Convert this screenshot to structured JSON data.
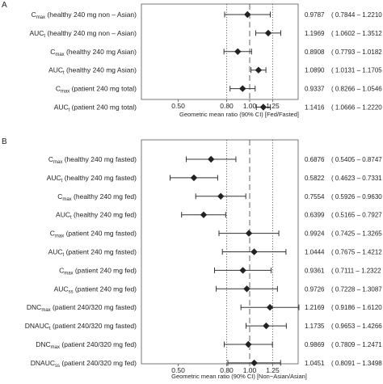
{
  "chart_data": [
    {
      "type": "forest",
      "panel_label": "A",
      "xlabel": "Geometric mean ratio (90% CI) [Fed/Fasted]",
      "xscale": "log",
      "xlim": [
        0.35,
        1.6
      ],
      "xticks": [
        0.5,
        0.8,
        1.0,
        1.25
      ],
      "xtick_labels": [
        "0.50",
        "0.80",
        "1.00",
        "1.25"
      ],
      "reference_lines": {
        "dotted": [
          0.8,
          1.25
        ],
        "dashed": [
          1.0
        ]
      },
      "rows": [
        {
          "sym": "C",
          "sub": "max",
          "rest": " (healthy 240 mg non – Asian)",
          "est": 0.9787,
          "lo": 0.7844,
          "hi": 1.221,
          "est_label": "0.9787",
          "ci_label": "( 0.7844 – 1.2210 )"
        },
        {
          "sym": "AUC",
          "sub": "t",
          "rest": " (healthy 240 mg non – Asian)",
          "est": 1.1969,
          "lo": 1.0602,
          "hi": 1.3512,
          "est_label": "1.1969",
          "ci_label": "( 1.0602 – 1.3512 )"
        },
        {
          "sym": "C",
          "sub": "max",
          "rest": " (healthy 240 mg Asian)",
          "est": 0.8908,
          "lo": 0.7793,
          "hi": 1.0182,
          "est_label": "0.8908",
          "ci_label": "( 0.7793 – 1.0182 )"
        },
        {
          "sym": "AUC",
          "sub": "t",
          "rest": " (healthy 240 mg Asian)",
          "est": 1.089,
          "lo": 1.0131,
          "hi": 1.1705,
          "est_label": "1.0890",
          "ci_label": "( 1.0131 – 1.1705 )"
        },
        {
          "sym": "C",
          "sub": "max",
          "rest": " (patient 240 mg total)",
          "est": 0.9337,
          "lo": 0.8266,
          "hi": 1.0546,
          "est_label": "0.9337",
          "ci_label": "( 0.8266 – 1.0546 )"
        },
        {
          "sym": "AUC",
          "sub": "t",
          "rest": " (patient 240 mg total)",
          "est": 1.1416,
          "lo": 1.0666,
          "hi": 1.222,
          "est_label": "1.1416",
          "ci_label": "( 1.0666 – 1.2220 )"
        }
      ]
    },
    {
      "type": "forest",
      "panel_label": "B",
      "xlabel": "Geometric mean ratio (90% CI) [Non−Asian/Asian]",
      "xscale": "log",
      "xlim": [
        0.35,
        1.6
      ],
      "xticks": [
        0.5,
        0.8,
        1.0,
        1.25
      ],
      "xtick_labels": [
        "0.50",
        "0.80",
        "1.00",
        "1.25"
      ],
      "reference_lines": {
        "dotted": [
          0.8,
          1.25
        ],
        "dashed": [
          1.0
        ]
      },
      "rows": [
        {
          "sym": "C",
          "sub": "max",
          "rest": " (healthy 240 mg fasted)",
          "est": 0.6876,
          "lo": 0.5405,
          "hi": 0.8747,
          "est_label": "0.6876",
          "ci_label": "( 0.5405 – 0.8747 )"
        },
        {
          "sym": "AUC",
          "sub": "t",
          "rest": " (healthy 240 mg fasted)",
          "est": 0.5822,
          "lo": 0.4623,
          "hi": 0.7331,
          "est_label": "0.5822",
          "ci_label": "( 0.4623 – 0.7331 )"
        },
        {
          "sym": "C",
          "sub": "max",
          "rest": " (healthy 240 mg fed)",
          "est": 0.7554,
          "lo": 0.5926,
          "hi": 0.963,
          "est_label": "0.7554",
          "ci_label": "( 0.5926 – 0.9630 )"
        },
        {
          "sym": "AUC",
          "sub": "t",
          "rest": " (healthy 240 mg fed)",
          "est": 0.6399,
          "lo": 0.5165,
          "hi": 0.7927,
          "est_label": "0.6399",
          "ci_label": "( 0.5165 – 0.7927 )"
        },
        {
          "sym": "C",
          "sub": "max",
          "rest": " (patient 240 mg fasted)",
          "est": 0.9924,
          "lo": 0.7425,
          "hi": 1.3265,
          "est_label": "0.9924",
          "ci_label": "( 0.7425 – 1.3265 )"
        },
        {
          "sym": "AUC",
          "sub": "t",
          "rest": " (patient 240 mg fasted)",
          "est": 1.0444,
          "lo": 0.7675,
          "hi": 1.4212,
          "est_label": "1.0444",
          "ci_label": "( 0.7675 – 1.4212 )"
        },
        {
          "sym": "C",
          "sub": "max",
          "rest": " (patient 240 mg fed)",
          "est": 0.9361,
          "lo": 0.7111,
          "hi": 1.2322,
          "est_label": "0.9361",
          "ci_label": "( 0.7111 – 1.2322 )"
        },
        {
          "sym": "AUC",
          "sub": "ss",
          "rest": " (patient 240 mg fed)",
          "est": 0.9726,
          "lo": 0.7228,
          "hi": 1.3087,
          "est_label": "0.9726",
          "ci_label": "( 0.7228 – 1.3087 )"
        },
        {
          "sym": "DNC",
          "sub": "max",
          "rest": " (patient 240/320 mg fasted)",
          "est": 1.2169,
          "lo": 0.9186,
          "hi": 1.612,
          "est_label": "1.2169",
          "ci_label": "( 0.9186 – 1.6120 )"
        },
        {
          "sym": "DNAUC",
          "sub": "t",
          "rest": " (patient 240/320 mg fasted)",
          "est": 1.1735,
          "lo": 0.9653,
          "hi": 1.4266,
          "est_label": "1.1735",
          "ci_label": "( 0.9653 – 1.4266 )"
        },
        {
          "sym": "DNC",
          "sub": "max",
          "rest": " (patient 240/320 mg fed)",
          "est": 0.9869,
          "lo": 0.7809,
          "hi": 1.2471,
          "est_label": "0.9869",
          "ci_label": "( 0.7809 – 1.2471 )"
        },
        {
          "sym": "DNAUC",
          "sub": "ss",
          "rest": " (patient 240/320 mg fed)",
          "est": 1.0451,
          "lo": 0.8091,
          "hi": 1.3498,
          "est_label": "1.0451",
          "ci_label": "( 0.8091 – 1.3498 )"
        }
      ]
    }
  ]
}
